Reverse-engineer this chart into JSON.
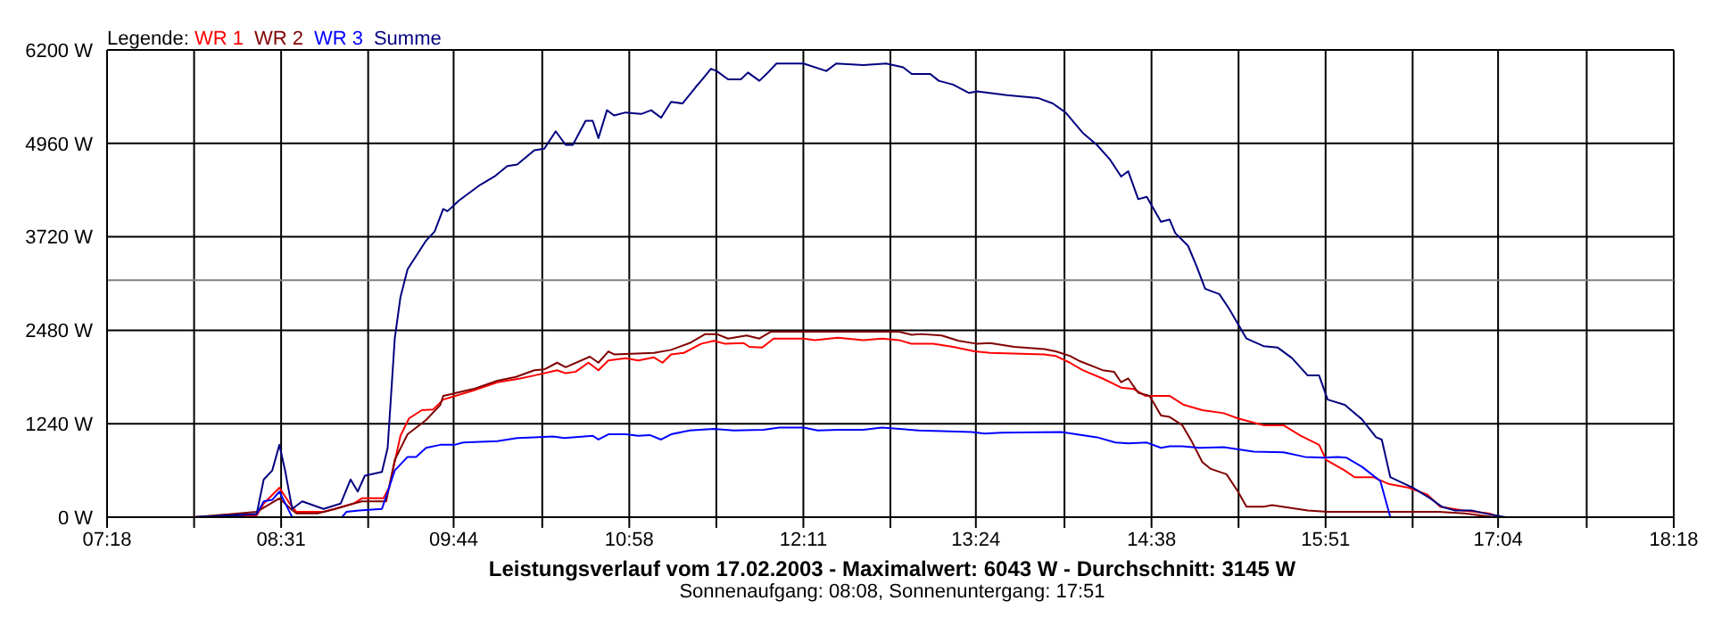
{
  "chart_data": {
    "type": "line",
    "title": "Leistungsverlauf vom 17.02.2003 - Maximalwert: 6043 W - Durchschnitt: 3145 W",
    "subtitle": "Sonnenaufgang: 08:08, Sonnenuntergang: 17:51",
    "legend_title": "Legende:",
    "legend": "top left",
    "grid": true,
    "marker": "none",
    "line_style": "solid",
    "xlim": [
      7.3,
      18.3
    ],
    "xticks": [
      {
        "value": 7.3,
        "label": "07:18"
      },
      {
        "value": 7.9111,
        "label": null
      },
      {
        "value": 8.5222,
        "label": "08:31"
      },
      {
        "value": 9.1333,
        "label": null
      },
      {
        "value": 9.7333,
        "label": "09:44"
      },
      {
        "value": 10.3556,
        "label": null
      },
      {
        "value": 10.9667,
        "label": "10:58"
      },
      {
        "value": 11.5778,
        "label": null
      },
      {
        "value": 12.1889,
        "label": "12:11"
      },
      {
        "value": 12.8,
        "label": null
      },
      {
        "value": 13.4,
        "label": "13:24"
      },
      {
        "value": 14.0222,
        "label": null
      },
      {
        "value": 14.6333,
        "label": "14:38"
      },
      {
        "value": 15.2444,
        "label": null
      },
      {
        "value": 15.8556,
        "label": "15:51"
      },
      {
        "value": 16.4667,
        "label": null
      },
      {
        "value": 17.0667,
        "label": "17:04"
      },
      {
        "value": 17.6889,
        "label": null
      },
      {
        "value": 18.3,
        "label": "18:18"
      }
    ],
    "ylim": [
      0,
      6200
    ],
    "yticks": [
      {
        "value": 0,
        "label": "0 W"
      },
      {
        "value": 1240,
        "label": "1240 W"
      },
      {
        "value": 2480,
        "label": "2480 W"
      },
      {
        "value": 3720,
        "label": "3720 W"
      },
      {
        "value": 4960,
        "label": "4960 W"
      },
      {
        "value": 6200,
        "label": "6200 W"
      }
    ],
    "ref_lines": [
      {
        "axis": "y",
        "value": 3145,
        "color": "#808080"
      }
    ],
    "series": [
      {
        "name": "WR 1",
        "color": "#ff0000",
        "x": [
          7.91,
          8.35,
          8.4,
          8.51,
          8.59,
          8.63,
          8.82,
          8.9,
          9.03,
          9.09,
          9.24,
          9.28,
          9.36,
          9.42,
          9.51,
          9.59,
          9.66,
          9.87,
          10.04,
          10.2,
          10.3,
          10.46,
          10.52,
          10.59,
          10.68,
          10.75,
          10.82,
          10.94,
          11.03,
          11.14,
          11.2,
          11.26,
          11.35,
          11.47,
          11.56,
          11.64,
          11.77,
          11.81,
          11.9,
          11.98,
          12.19,
          12.27,
          12.43,
          12.61,
          12.74,
          12.86,
          12.95,
          13.1,
          13.24,
          13.39,
          13.5,
          13.88,
          13.96,
          14.06,
          14.15,
          14.29,
          14.42,
          14.51,
          14.59,
          14.76,
          14.86,
          14.99,
          15.14,
          15.24,
          15.42,
          15.56,
          15.68,
          15.81,
          15.86,
          15.99,
          16.06,
          16.19,
          16.3,
          16.44,
          16.57,
          16.66,
          16.82,
          17.0,
          17.08
        ],
        "values": [
          0,
          20,
          180,
          390,
          160,
          70,
          70,
          110,
          180,
          250,
          250,
          390,
          1080,
          1310,
          1420,
          1430,
          1560,
          1680,
          1790,
          1840,
          1880,
          1950,
          1910,
          1930,
          2050,
          1950,
          2080,
          2110,
          2080,
          2120,
          2050,
          2160,
          2180,
          2300,
          2340,
          2300,
          2310,
          2260,
          2250,
          2370,
          2370,
          2350,
          2380,
          2350,
          2370,
          2350,
          2300,
          2300,
          2260,
          2200,
          2180,
          2160,
          2140,
          2050,
          1950,
          1840,
          1720,
          1700,
          1610,
          1610,
          1490,
          1420,
          1380,
          1310,
          1220,
          1220,
          1080,
          960,
          760,
          620,
          530,
          530,
          440,
          390,
          300,
          140,
          90,
          50,
          0
        ]
      },
      {
        "name": "WR 2",
        "color": "#800000",
        "x": [
          7.91,
          8.35,
          8.51,
          8.59,
          8.63,
          8.78,
          8.9,
          9.03,
          9.09,
          9.26,
          9.32,
          9.41,
          9.54,
          9.64,
          9.66,
          9.87,
          10.04,
          10.17,
          10.3,
          10.37,
          10.46,
          10.52,
          10.69,
          10.75,
          10.82,
          10.86,
          11.14,
          11.26,
          11.39,
          11.5,
          11.58,
          11.66,
          11.79,
          11.88,
          11.96,
          12.61,
          12.86,
          12.95,
          13.01,
          13.16,
          13.28,
          13.41,
          13.5,
          13.67,
          13.88,
          13.96,
          14.06,
          14.13,
          14.29,
          14.37,
          14.42,
          14.47,
          14.54,
          14.62,
          14.7,
          14.76,
          14.85,
          14.92,
          14.99,
          15.05,
          15.16,
          15.24,
          15.3,
          15.42,
          15.48,
          15.73,
          15.87,
          16.65,
          16.83,
          17.04
        ],
        "values": [
          0,
          70,
          250,
          110,
          50,
          50,
          110,
          180,
          210,
          210,
          760,
          1100,
          1290,
          1490,
          1610,
          1700,
          1810,
          1860,
          1950,
          1960,
          2050,
          1990,
          2130,
          2050,
          2200,
          2160,
          2180,
          2220,
          2310,
          2430,
          2430,
          2370,
          2410,
          2370,
          2460,
          2460,
          2460,
          2420,
          2430,
          2410,
          2340,
          2300,
          2310,
          2260,
          2230,
          2200,
          2140,
          2070,
          1950,
          1930,
          1790,
          1840,
          1650,
          1610,
          1350,
          1330,
          1220,
          990,
          730,
          640,
          570,
          340,
          140,
          140,
          160,
          90,
          70,
          70,
          50,
          0
        ]
      },
      {
        "name": "WR 3",
        "color": "#0000ff",
        "x": [
          7.91,
          8.35,
          8.4,
          8.46,
          8.51,
          8.56,
          8.6,
          8.67,
          8.95,
          8.98,
          9.07,
          9.23,
          9.32,
          9.41,
          9.47,
          9.54,
          9.64,
          9.74,
          9.8,
          10.04,
          10.18,
          10.3,
          10.43,
          10.51,
          10.71,
          10.75,
          10.82,
          10.94,
          11.03,
          11.11,
          11.19,
          11.26,
          11.39,
          11.56,
          11.7,
          11.91,
          12.02,
          12.19,
          12.29,
          12.44,
          12.61,
          12.74,
          13.0,
          13.37,
          13.46,
          13.58,
          14.0,
          14.25,
          14.38,
          14.47,
          14.6,
          14.7,
          14.76,
          14.85,
          14.97,
          15.14,
          15.35,
          15.56,
          15.71,
          15.84,
          15.94,
          16.0,
          16.11,
          16.24,
          16.31,
          16.63
        ],
        "values": [
          0,
          40,
          210,
          230,
          340,
          150,
          0,
          0,
          0,
          70,
          90,
          110,
          620,
          800,
          800,
          920,
          960,
          960,
          990,
          1010,
          1050,
          1060,
          1070,
          1050,
          1080,
          1030,
          1100,
          1100,
          1080,
          1090,
          1030,
          1100,
          1150,
          1170,
          1150,
          1160,
          1190,
          1190,
          1150,
          1160,
          1160,
          1190,
          1150,
          1130,
          1110,
          1120,
          1130,
          1060,
          990,
          980,
          990,
          920,
          940,
          940,
          920,
          930,
          870,
          860,
          800,
          790,
          800,
          790,
          670,
          480,
          0,
          0
        ]
      },
      {
        "name": "Summe",
        "color": "#000080",
        "x": [
          7.91,
          8.35,
          8.4,
          8.46,
          8.51,
          8.55,
          8.6,
          8.67,
          8.82,
          8.94,
          9.01,
          9.06,
          9.11,
          9.23,
          9.27,
          9.32,
          9.36,
          9.41,
          9.54,
          9.6,
          9.66,
          9.69,
          9.77,
          9.92,
          10.02,
          10.11,
          10.18,
          10.3,
          10.37,
          10.45,
          10.52,
          10.57,
          10.66,
          10.71,
          10.75,
          10.81,
          10.86,
          10.94,
          11.05,
          11.12,
          11.19,
          11.26,
          11.34,
          11.43,
          11.48,
          11.54,
          11.58,
          11.66,
          11.75,
          11.8,
          11.88,
          11.94,
          12.0,
          12.19,
          12.35,
          12.42,
          12.61,
          12.77,
          12.89,
          12.95,
          13.08,
          13.14,
          13.24,
          13.35,
          13.41,
          13.62,
          13.84,
          13.94,
          14.03,
          14.15,
          14.25,
          14.34,
          14.42,
          14.47,
          14.54,
          14.6,
          14.7,
          14.76,
          14.8,
          14.89,
          14.95,
          15.01,
          15.11,
          15.18,
          15.3,
          15.42,
          15.52,
          15.62,
          15.73,
          15.81,
          15.87,
          15.99,
          16.11,
          16.21,
          16.25,
          16.31,
          16.47,
          16.59,
          16.67,
          16.76,
          16.88,
          17.0,
          17.12
        ],
        "values": [
          0,
          40,
          500,
          620,
          960,
          620,
          110,
          210,
          110,
          180,
          500,
          340,
          550,
          600,
          920,
          2370,
          2920,
          3290,
          3670,
          3790,
          4090,
          4060,
          4200,
          4410,
          4520,
          4660,
          4680,
          4870,
          4890,
          5120,
          4940,
          4940,
          5260,
          5260,
          5030,
          5400,
          5330,
          5370,
          5350,
          5400,
          5300,
          5510,
          5490,
          5700,
          5810,
          5950,
          5920,
          5810,
          5810,
          5900,
          5790,
          5900,
          6020,
          6020,
          5920,
          6020,
          6000,
          6020,
          5970,
          5880,
          5880,
          5790,
          5740,
          5630,
          5650,
          5600,
          5560,
          5490,
          5370,
          5100,
          4940,
          4750,
          4520,
          4590,
          4220,
          4250,
          3920,
          3950,
          3770,
          3600,
          3330,
          3030,
          2960,
          2760,
          2370,
          2270,
          2250,
          2110,
          1880,
          1880,
          1560,
          1490,
          1300,
          1060,
          1030,
          530,
          390,
          250,
          140,
          90,
          90,
          40,
          0
        ]
      }
    ]
  }
}
